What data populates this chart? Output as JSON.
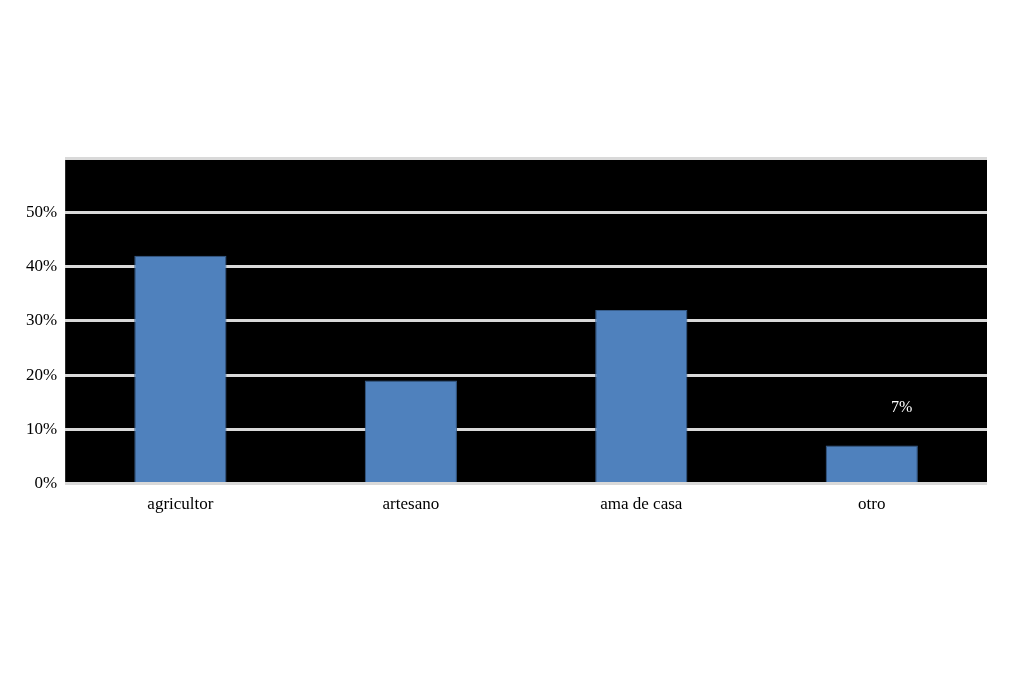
{
  "chart_data": {
    "type": "bar",
    "categories": [
      "agricultor",
      "artesano",
      "ama de casa",
      "otro"
    ],
    "values": [
      42,
      19,
      32,
      7
    ],
    "color": "#4f81bd",
    "value_labels": [
      null,
      null,
      null,
      "7%"
    ],
    "ylim": [
      0,
      60
    ],
    "yticks": [
      {
        "value": 0,
        "label": "0%"
      },
      {
        "value": 10,
        "label": "10%"
      },
      {
        "value": 20,
        "label": "20%"
      },
      {
        "value": 30,
        "label": "30%"
      },
      {
        "value": 40,
        "label": "40%"
      },
      {
        "value": 50,
        "label": "50%"
      },
      {
        "value": 60,
        "label": null
      }
    ],
    "grid": "y",
    "legend": false
  }
}
